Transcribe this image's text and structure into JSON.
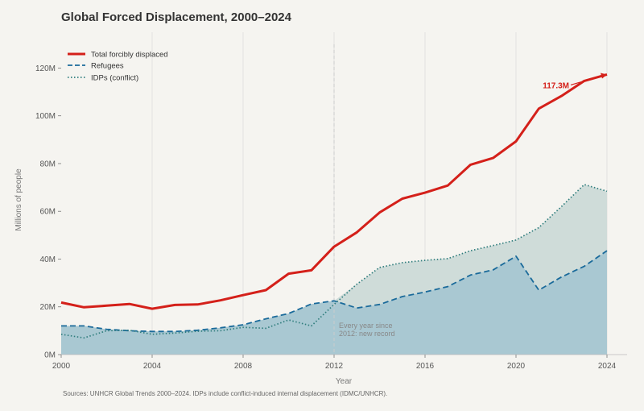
{
  "title": "Global Forced Displacement, 2000–2024",
  "footer": "Sources: UNHCR Global Trends 2000–2024. IDPs include conflict-induced internal displacement (IDMC/UNHCR).",
  "colors": {
    "total": "#d4201a",
    "refugees": "#1a6a9a",
    "idps": "#2f7d7d",
    "refugee_fill": "#a9c8d2",
    "idp_fill": "#cfdcd9",
    "grid": "#dddddd",
    "marker": "#cccccc"
  },
  "chart_data": {
    "type": "line",
    "title": "Global Forced Displacement, 2000–2024",
    "xlabel": "Year",
    "ylabel": "Millions of people",
    "xlim": [
      2000,
      2024
    ],
    "ylim": [
      0,
      135
    ],
    "x_ticks": [
      2000,
      2004,
      2008,
      2012,
      2016,
      2020,
      2024
    ],
    "y_ticks": [
      0,
      20,
      40,
      60,
      80,
      100,
      120
    ],
    "y_tick_labels": [
      "0M",
      "20M",
      "40M",
      "60M",
      "80M",
      "100M",
      "120M"
    ],
    "grid": "vertical",
    "legend_position": "top-left",
    "x": [
      2000,
      2001,
      2002,
      2003,
      2004,
      2005,
      2006,
      2007,
      2008,
      2009,
      2010,
      2011,
      2012,
      2013,
      2014,
      2015,
      2016,
      2017,
      2018,
      2019,
      2020,
      2021,
      2022,
      2023,
      2024
    ],
    "series": [
      {
        "name": "Total forcibly displaced",
        "style": "solid",
        "values": [
          21.8,
          19.8,
          20.5,
          21.2,
          19.2,
          20.8,
          21.0,
          22.7,
          24.9,
          27.0,
          33.9,
          35.3,
          45.2,
          51.2,
          59.5,
          65.3,
          67.8,
          70.8,
          79.5,
          82.4,
          89.3,
          103.0,
          108.3,
          114.6,
          117.3
        ]
      },
      {
        "name": "Refugees",
        "style": "dashed",
        "values": [
          12.0,
          12.0,
          10.6,
          10.0,
          9.7,
          9.7,
          10.2,
          11.2,
          12.5,
          15.0,
          17.2,
          21.2,
          22.5,
          19.5,
          21.0,
          24.3,
          26.2,
          28.5,
          33.3,
          35.5,
          41.2,
          27.0,
          32.5,
          37.0,
          43.5
        ]
      },
      {
        "name": "IDPs (conflict)",
        "style": "dotted",
        "values": [
          8.5,
          7.0,
          10.0,
          10.2,
          8.5,
          9.0,
          9.8,
          10.0,
          11.4,
          11.0,
          14.5,
          12.0,
          21.0,
          29.5,
          36.5,
          38.5,
          39.5,
          40.2,
          43.5,
          45.7,
          48.0,
          53.2,
          62.0,
          71.2,
          68.4
        ]
      }
    ],
    "annotations": [
      {
        "id": "record",
        "x": 2012,
        "line1": "Every year since",
        "line2": "2012: new record"
      },
      {
        "id": "final",
        "text": "117.3M",
        "x": 2024,
        "y": 117.3
      }
    ]
  }
}
